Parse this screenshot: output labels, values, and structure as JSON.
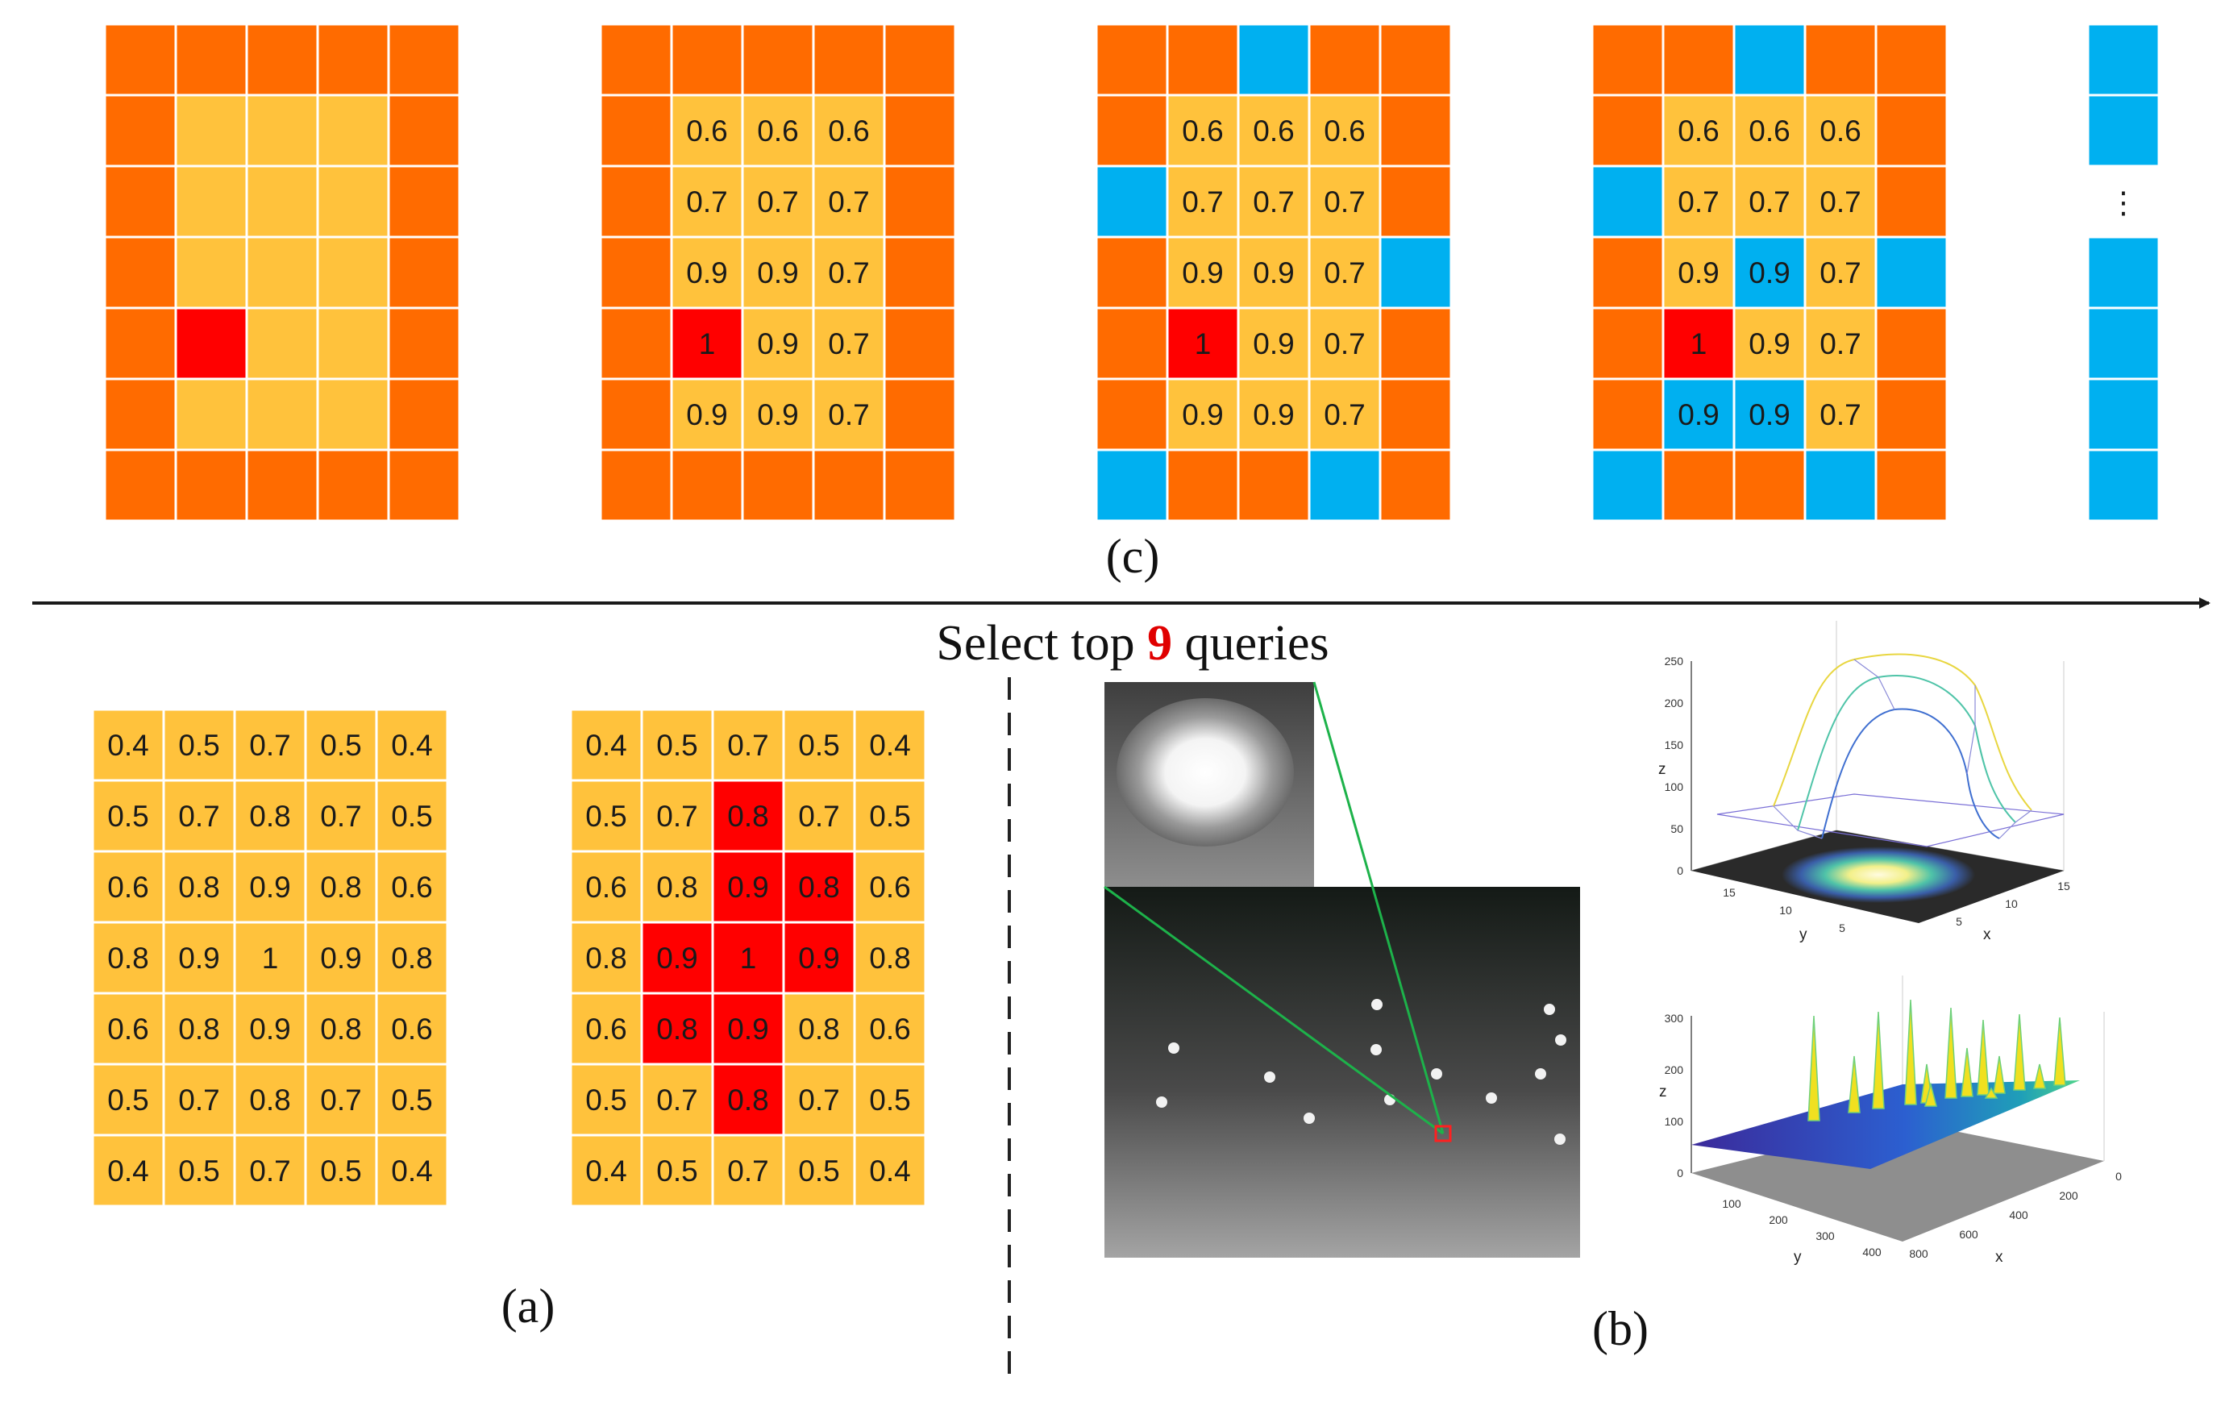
{
  "title": {
    "select_prefix": "Select top ",
    "select_number": "9",
    "select_suffix": " queries"
  },
  "captions": {
    "a": "(a)",
    "b": "(b)",
    "c": "(c)"
  },
  "colors": {
    "orange": "#FF6B00",
    "yellow": "#FFC23C",
    "red": "#FF0000",
    "blue": "#00B0F0",
    "highlight_text": "#E00000"
  },
  "grid_a": {
    "values": [
      [
        "0.4",
        "0.5",
        "0.7",
        "0.5",
        "0.4"
      ],
      [
        "0.5",
        "0.7",
        "0.8",
        "0.7",
        "0.5"
      ],
      [
        "0.6",
        "0.8",
        "0.9",
        "0.8",
        "0.6"
      ],
      [
        "0.8",
        "0.9",
        "1",
        "0.9",
        "0.8"
      ],
      [
        "0.6",
        "0.8",
        "0.9",
        "0.8",
        "0.6"
      ],
      [
        "0.5",
        "0.7",
        "0.8",
        "0.7",
        "0.5"
      ],
      [
        "0.4",
        "0.5",
        "0.7",
        "0.5",
        "0.4"
      ]
    ],
    "red_cells_second": [
      [
        1,
        2
      ],
      [
        2,
        2
      ],
      [
        2,
        3
      ],
      [
        3,
        1
      ],
      [
        3,
        2
      ],
      [
        3,
        3
      ],
      [
        4,
        1
      ],
      [
        4,
        2
      ],
      [
        5,
        2
      ]
    ]
  },
  "grid_c": {
    "inner_values": [
      [
        "0.6",
        "0.6",
        "0.6"
      ],
      [
        "0.7",
        "0.7",
        "0.7"
      ],
      [
        "0.9",
        "0.9",
        "0.7"
      ],
      [
        "1",
        "0.9",
        "0.7"
      ],
      [
        "0.9",
        "0.9",
        "0.7"
      ]
    ],
    "red_cell": [
      4,
      1
    ],
    "blue_cells_third": [
      [
        0,
        2
      ],
      [
        2,
        0
      ],
      [
        3,
        4
      ],
      [
        6,
        0
      ],
      [
        6,
        3
      ]
    ],
    "blue_cells_fourth": [
      [
        0,
        2
      ],
      [
        2,
        0
      ],
      [
        3,
        4
      ],
      [
        6,
        0
      ],
      [
        6,
        3
      ],
      [
        3,
        2
      ],
      [
        5,
        1
      ],
      [
        5,
        2
      ]
    ],
    "column_ellipsis": "⋮"
  },
  "plot_top": {
    "z_ticks": [
      "0",
      "50",
      "100",
      "150",
      "200",
      "250"
    ],
    "y_ticks": [
      "15",
      "10",
      "5"
    ],
    "x_ticks": [
      "5",
      "10",
      "15"
    ],
    "x_label": "x",
    "y_label": "y",
    "z_label": "z"
  },
  "plot_bottom": {
    "z_ticks": [
      "0",
      "100",
      "200",
      "300"
    ],
    "y_ticks": [
      "100",
      "200",
      "300",
      "400"
    ],
    "x_ticks": [
      "800",
      "600",
      "400",
      "200",
      "0"
    ],
    "x_label": "x",
    "y_label": "y",
    "z_label": "z"
  }
}
